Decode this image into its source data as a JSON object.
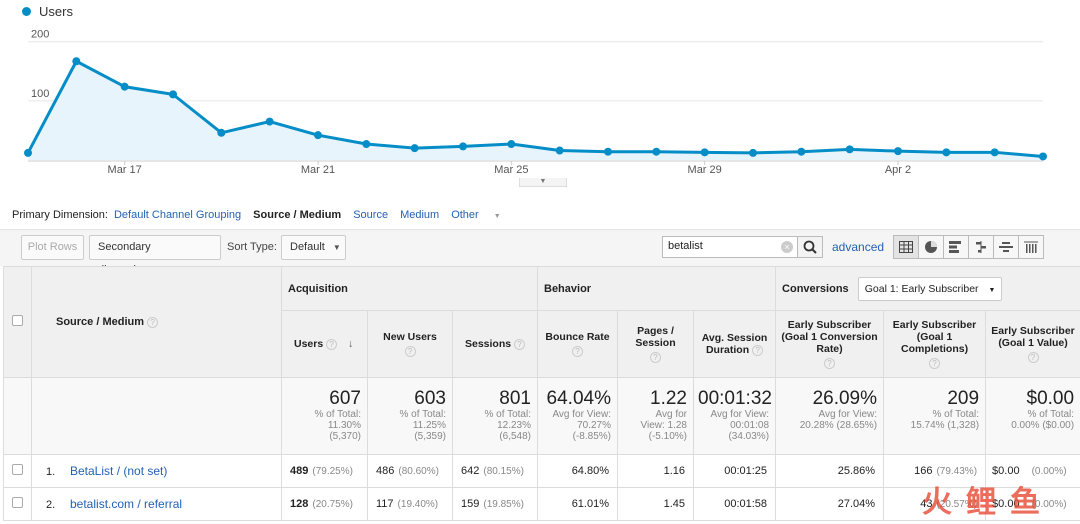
{
  "chart": {
    "legend": "Users",
    "colors": {
      "line": "#058dc7",
      "fill": "#e8f4fb"
    },
    "chart_data": {
      "type": "area",
      "series": [
        {
          "name": "Users",
          "values": [
            12,
            167,
            124,
            111,
            46,
            65,
            42,
            27,
            20,
            23,
            27,
            16,
            14,
            14,
            13,
            12,
            14,
            18,
            15,
            13,
            13,
            6
          ]
        }
      ],
      "y_ticks": [
        "200",
        "100"
      ],
      "ylim": [
        0,
        230
      ],
      "x_tick_labels": [
        "Mar 17",
        "Mar 21",
        "Mar 25",
        "Mar 29",
        "Apr 2"
      ],
      "grid": true
    }
  },
  "primary_dimension": {
    "label": "Primary Dimension:",
    "options": [
      "Default Channel Grouping",
      "Source / Medium",
      "Source",
      "Medium",
      "Other"
    ],
    "active": "Source / Medium"
  },
  "toolbar": {
    "plot_rows": "Plot Rows",
    "secondary_dimension": "Secondary dimension",
    "sort_type_label": "Sort Type:",
    "sort_type_value": "Default",
    "search_value": "betalist",
    "advanced": "advanced"
  },
  "table": {
    "dimension_header": "Source / Medium",
    "groups": {
      "acquisition": "Acquisition",
      "behavior": "Behavior",
      "conversions": "Conversions",
      "goal_select": "Goal 1: Early Subscriber"
    },
    "columns": {
      "users": "Users",
      "new_users": "New Users",
      "sessions": "Sessions",
      "bounce_rate": "Bounce Rate",
      "pages_session": "Pages / Session",
      "avg_duration": "Avg. Session Duration",
      "conv_rate": "Early Subscriber (Goal 1 Conversion Rate)",
      "completions": "Early Subscriber (Goal 1 Completions)",
      "value": "Early Subscriber (Goal 1 Value)"
    },
    "totals": {
      "users": {
        "big": "607",
        "l1": "% of Total:",
        "l2": "11.30%",
        "l3": "(5,370)"
      },
      "new_users": {
        "big": "603",
        "l1": "% of Total:",
        "l2": "11.25%",
        "l3": "(5,359)"
      },
      "sessions": {
        "big": "801",
        "l1": "% of Total:",
        "l2": "12.23%",
        "l3": "(6,548)"
      },
      "bounce_rate": {
        "big": "64.04%",
        "l1": "Avg for View:",
        "l2": "70.27%",
        "l3": "(-8.85%)"
      },
      "pages_session": {
        "big": "1.22",
        "l1": "Avg for",
        "l2": "View: 1.28",
        "l3": "(-5.10%)"
      },
      "avg_duration": {
        "big": "00:01:32",
        "l1": "Avg for View:",
        "l2": "00:01:08",
        "l3": "(34.03%)"
      },
      "conv_rate": {
        "big": "26.09%",
        "l1": "Avg for View:",
        "l2": "20.28% (28.65%)",
        "l3": ""
      },
      "completions": {
        "big": "209",
        "l1": "% of Total:",
        "l2": "15.74% (1,328)",
        "l3": ""
      },
      "value": {
        "big": "$0.00",
        "l1": "% of Total:",
        "l2": "0.00% ($0.00)",
        "l3": ""
      }
    },
    "rows": [
      {
        "index": "1.",
        "source": "BetaList / (not set)",
        "users": "489",
        "users_pct": "(79.25%)",
        "new_users": "486",
        "new_users_pct": "(80.60%)",
        "sessions": "642",
        "sessions_pct": "(80.15%)",
        "bounce_rate": "64.80%",
        "pages_session": "1.16",
        "avg_duration": "00:01:25",
        "conv_rate": "25.86%",
        "completions": "166",
        "completions_pct": "(79.43%)",
        "value": "$0.00",
        "value_pct": "(0.00%)"
      },
      {
        "index": "2.",
        "source": "betalist.com / referral",
        "users": "128",
        "users_pct": "(20.75%)",
        "new_users": "117",
        "new_users_pct": "(19.40%)",
        "sessions": "159",
        "sessions_pct": "(19.85%)",
        "bounce_rate": "61.01%",
        "pages_session": "1.45",
        "avg_duration": "00:01:58",
        "conv_rate": "27.04%",
        "completions": "43",
        "completions_pct": "(20.57%)",
        "value": "$0.00",
        "value_pct": "(0.00%)"
      }
    ]
  },
  "watermark": {
    "text": "火鲤鱼"
  }
}
